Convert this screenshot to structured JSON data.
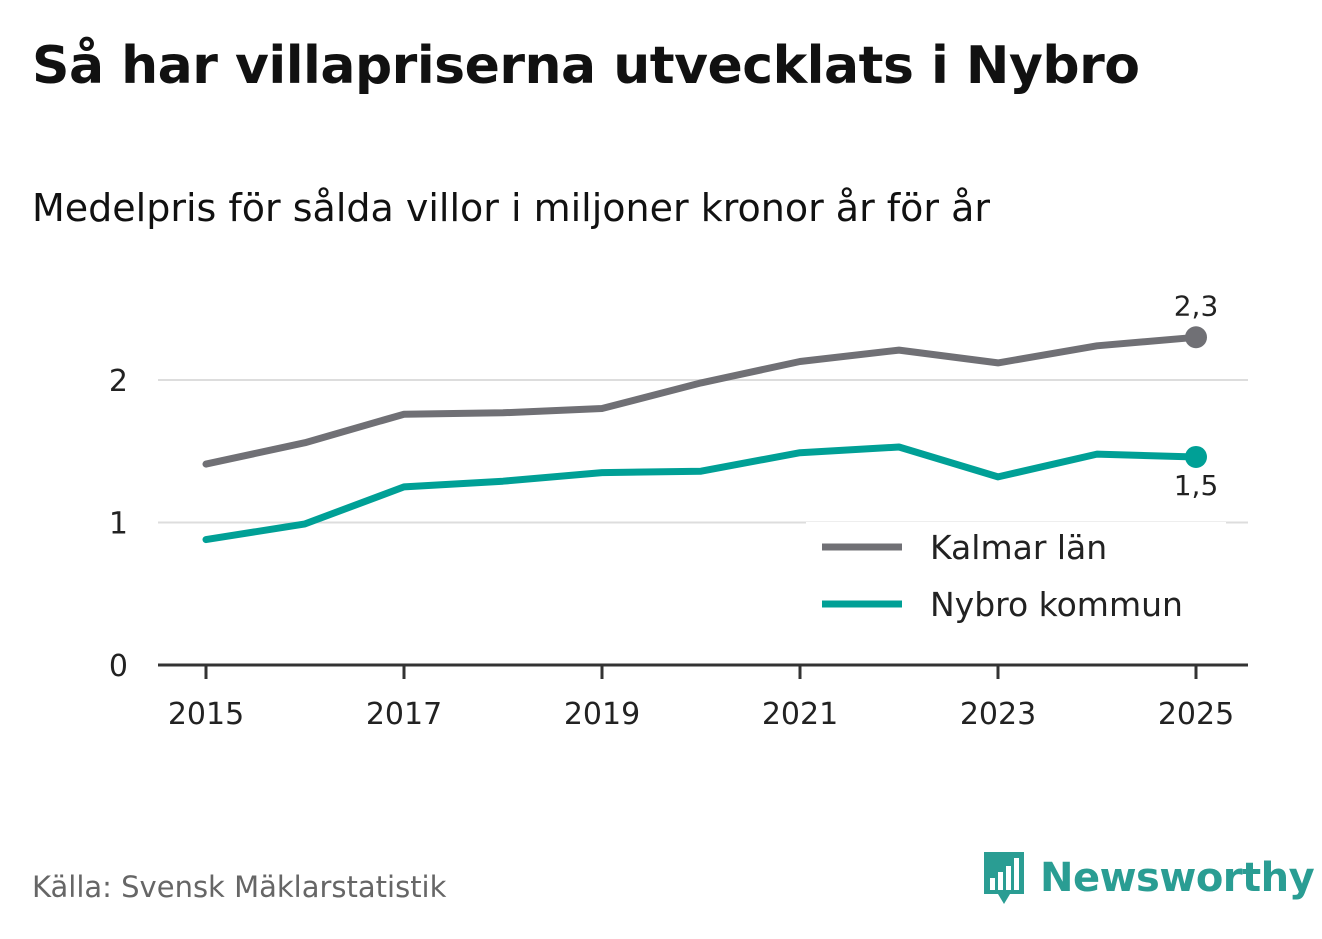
{
  "title": "Så har villapriserna utvecklats i Nybro",
  "subtitle": "Medelpris för sålda villor i miljoner kronor år för år",
  "source": "Källa: Svensk Mäklarstatistik",
  "brand": {
    "name": "Newsworthy",
    "icon": "newsworthy-logo-icon"
  },
  "colors": {
    "kalmar": "#707075",
    "nybro": "#00a096",
    "grid": "#dddddd",
    "axis": "#333333",
    "brand": "#2a9d93"
  },
  "chart_data": {
    "type": "line",
    "title": "Så har villapriserna utvecklats i Nybro",
    "xlabel": "",
    "ylabel": "",
    "x": [
      2015,
      2016,
      2017,
      2018,
      2019,
      2020,
      2021,
      2022,
      2023,
      2024,
      2025
    ],
    "x_ticks": [
      "2015",
      "2017",
      "2019",
      "2021",
      "2023",
      "2025"
    ],
    "y_ticks": [
      "0",
      "1",
      "2"
    ],
    "ylim": [
      0,
      2.5
    ],
    "grid": true,
    "legend_position": "bottom-right",
    "series": [
      {
        "name": "Kalmar län",
        "color": "#707075",
        "values": [
          1.41,
          1.56,
          1.76,
          1.77,
          1.8,
          1.98,
          2.13,
          2.21,
          2.12,
          2.24,
          2.3
        ],
        "end_label": "2,3"
      },
      {
        "name": "Nybro kommun",
        "color": "#00a096",
        "values": [
          0.88,
          0.99,
          1.25,
          1.29,
          1.35,
          1.36,
          1.49,
          1.53,
          1.32,
          1.48,
          1.46
        ],
        "end_label": "1,5"
      }
    ]
  }
}
